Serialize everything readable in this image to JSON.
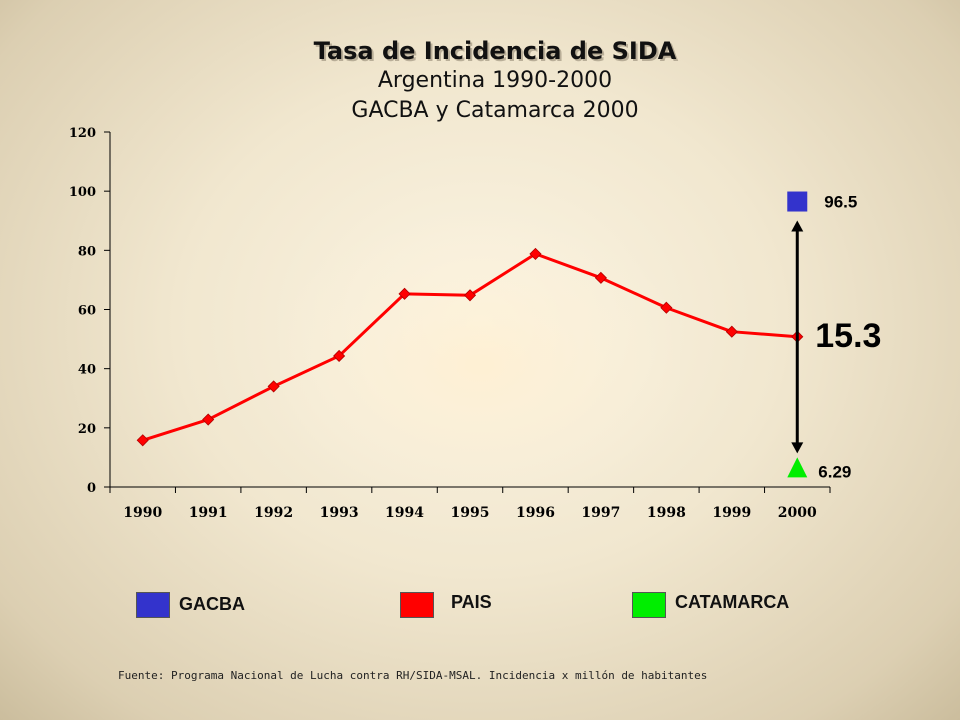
{
  "chart_data": {
    "type": "line",
    "title": "Tasa de Incidencia de SIDA",
    "subtitle": [
      "Argentina 1990-2000",
      "GACBA y Catamarca 2000"
    ],
    "xlabel": "",
    "ylabel": "",
    "categories": [
      "1990",
      "1991",
      "1992",
      "1993",
      "1994",
      "1995",
      "1996",
      "1997",
      "1998",
      "1999",
      "2000"
    ],
    "ylim": [
      0,
      120
    ],
    "yticks": [
      0,
      20,
      40,
      60,
      80,
      100,
      120
    ],
    "grid": false,
    "series": [
      {
        "name": "PAIS",
        "color": "#ff0000",
        "values": [
          15.8,
          22.8,
          34,
          44.3,
          65.3,
          64.8,
          78.8,
          70.7,
          60.6,
          52.5,
          50.8
        ]
      }
    ],
    "points_2000": [
      {
        "name": "GACBA",
        "color": "#3333cc",
        "marker": "square",
        "value": 96.5,
        "label": "96.5"
      },
      {
        "name": "CATAMARCA",
        "color": "#00ee00",
        "marker": "triangle",
        "value": 6.29,
        "label": "6.29"
      }
    ],
    "ratio_annotation": "15.3",
    "legend": [
      {
        "label": "GACBA",
        "color": "#3333cc"
      },
      {
        "label": "PAIS",
        "color": "#ff0000"
      },
      {
        "label": "CATAMARCA",
        "color": "#00ee00"
      }
    ],
    "legend_position": "bottom",
    "source": "Fuente: Programa Nacional de Lucha contra RH/SIDA-MSAL. Incidencia x millón de habitantes"
  }
}
